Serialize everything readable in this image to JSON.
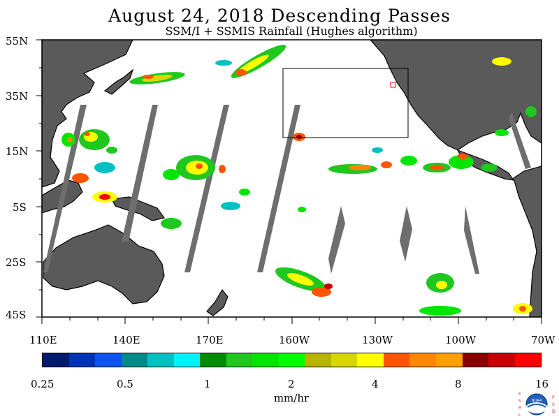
{
  "title": "August 24, 2018  Descending Passes",
  "subtitle": "SSM/I + SSMIS Rainfall (Hughes algorithm)",
  "lat_labels": [
    "55N",
    "35N",
    "15N",
    "5S",
    "25S",
    "45S"
  ],
  "lon_labels": [
    "110E",
    "140E",
    "170E",
    "160W",
    "130W",
    "100W",
    "70W"
  ],
  "colorbar": {
    "colors": [
      "#001a6e",
      "#0033b5",
      "#0f52f2",
      "#008b8b",
      "#00c1c1",
      "#00f2ff",
      "#008c00",
      "#1fc71f",
      "#00e600",
      "#00ff00",
      "#b5b500",
      "#d8d800",
      "#ffff00",
      "#ff5500",
      "#ff8800",
      "#ff9f00",
      "#8a0000",
      "#c90000",
      "#ff0000"
    ],
    "tick_labels": [
      "0.25",
      "0.5",
      "1",
      "2",
      "4",
      "8",
      "16"
    ]
  },
  "units": "mm/hr",
  "logo": {
    "left_letters": [
      "E",
      "S",
      "R",
      "L"
    ],
    "right_letters": [
      "P",
      "S",
      "D"
    ],
    "center_text": "NOAA"
  },
  "colors": {
    "land": "#5a5a5a",
    "gap": "#6e6e6e",
    "ocean": "#ffffff"
  }
}
